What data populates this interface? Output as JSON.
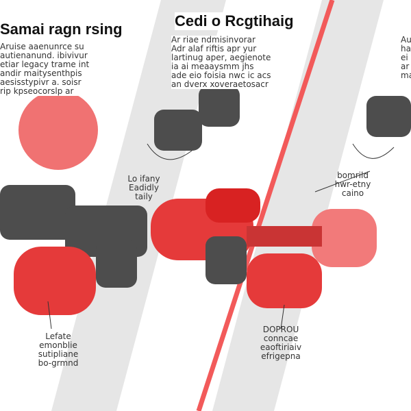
{
  "colors": {
    "accent": "#e8262b",
    "stripe": "#e6e6e6",
    "metal": "#4a4a4a",
    "line": "#f04040"
  },
  "left_block": {
    "title": "Samai ragn rsing",
    "lines": [
      "Aruise aaenunrce su",
      "autienanund. ibivivur",
      "etiar legacy trame int",
      "andir maitysenthpis",
      "aesisstypivr a. soisr",
      "rip kpseocorslp ar"
    ]
  },
  "center_block": {
    "title": "Cedi o Rcgtihaig",
    "lines": [
      "Ar riae ndmisinvorar",
      "Adr alaf riftis apr yur",
      "lartinug aper, aegienote",
      "ia ai meaaysmm jhs",
      "ade eio foisia nwc ic acs",
      "an dverx xoveraetosacr"
    ]
  },
  "right_block": {
    "lines": [
      "Au",
      "ha",
      "ei",
      "ar",
      "ma"
    ]
  },
  "labels": {
    "top_center": [
      "Lo ifany",
      "Eadidly",
      "taily"
    ],
    "right": [
      "bomrild",
      "hwr-etny",
      "caino"
    ],
    "bottom_left": [
      "Lefate",
      "emonblie",
      "sutipliane",
      "bo-grmnd"
    ],
    "bottom_center": [
      "DOPROU",
      "conncae",
      "eaoftiriaiv",
      "efrigepna"
    ]
  },
  "icons": [
    "dumbbell-red",
    "dumbbell-gray",
    "hex-dumbbell-head"
  ]
}
